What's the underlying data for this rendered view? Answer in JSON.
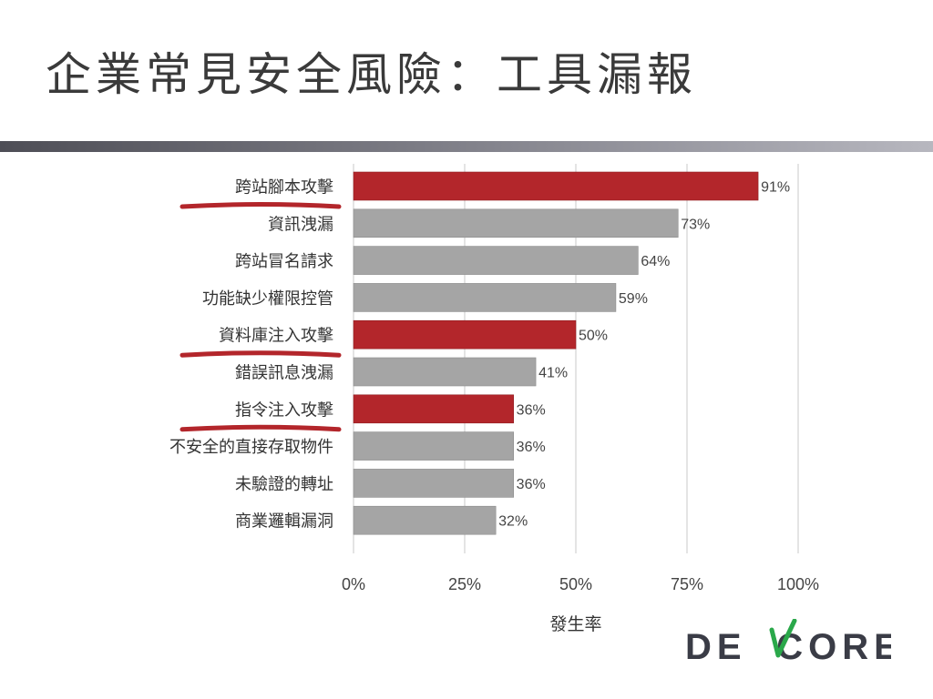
{
  "slide": {
    "title": "企業常見安全風險：工具漏報",
    "logo_text": "DEVCORE"
  },
  "colors": {
    "highlight": "#b3262b",
    "normal": "#a5a5a5",
    "underline": "#b3262b",
    "grid": "#c8c8c8"
  },
  "chart_data": {
    "type": "bar",
    "orientation": "horizontal",
    "categories": [
      "跨站腳本攻擊",
      "資訊洩漏",
      "跨站冒名請求",
      "功能缺少權限控管",
      "資料庫注入攻擊",
      "錯誤訊息洩漏",
      "指令注入攻擊",
      "不安全的直接存取物件",
      "未驗證的轉址",
      "商業邏輯漏洞"
    ],
    "values": [
      91,
      73,
      64,
      59,
      50,
      41,
      36,
      36,
      36,
      32
    ],
    "value_labels": [
      "91%",
      "73%",
      "64%",
      "59%",
      "50%",
      "41%",
      "36%",
      "36%",
      "36%",
      "32%"
    ],
    "highlighted": [
      true,
      false,
      false,
      false,
      true,
      false,
      true,
      false,
      false,
      false
    ],
    "underlined": [
      true,
      false,
      false,
      false,
      true,
      false,
      true,
      false,
      false,
      false
    ],
    "xlim": [
      0,
      100
    ],
    "xticks": [
      0,
      25,
      50,
      75,
      100
    ],
    "xtick_labels": [
      "0%",
      "25%",
      "50%",
      "75%",
      "100%"
    ],
    "xlabel": "發生率",
    "ylabel": "",
    "grid": true
  }
}
